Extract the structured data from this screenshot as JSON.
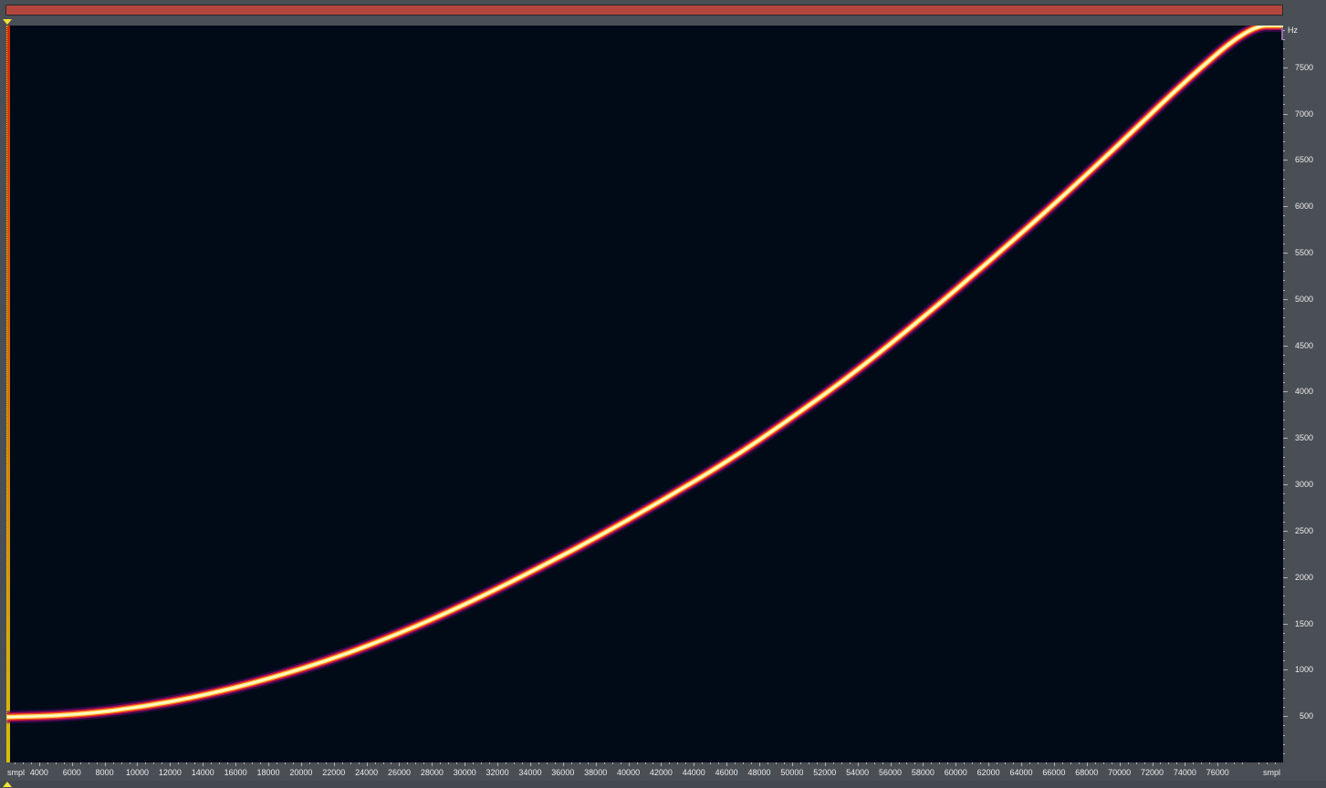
{
  "app": {
    "overview_color": "#b5463e",
    "background_color": "#010b18",
    "marker_color": "#f2e23a"
  },
  "y_axis": {
    "unit": "Hz",
    "labels": [
      "7500",
      "7000",
      "6500",
      "6000",
      "5500",
      "5000",
      "4500",
      "4000",
      "3500",
      "3000",
      "2500",
      "2000",
      "1500",
      "1000",
      "500"
    ]
  },
  "x_axis": {
    "unit_left": "smpl",
    "unit_right": "smpl",
    "labels": [
      "4000",
      "6000",
      "8000",
      "10000",
      "12000",
      "14000",
      "16000",
      "18000",
      "20000",
      "22000",
      "24000",
      "26000",
      "28000",
      "30000",
      "32000",
      "34000",
      "36000",
      "38000",
      "40000",
      "42000",
      "44000",
      "46000",
      "48000",
      "50000",
      "52000",
      "54000",
      "56000",
      "58000",
      "60000",
      "62000",
      "64000",
      "66000",
      "68000",
      "70000",
      "72000",
      "74000",
      "76000"
    ]
  },
  "chart_data": {
    "type": "heatmap",
    "title": "",
    "xlabel": "smpl",
    "ylabel": "Hz",
    "xlim": [
      2000,
      80000
    ],
    "ylim": [
      0,
      7950
    ],
    "x_ticks": [
      4000,
      6000,
      8000,
      10000,
      12000,
      14000,
      16000,
      18000,
      20000,
      22000,
      24000,
      26000,
      28000,
      30000,
      32000,
      34000,
      36000,
      38000,
      40000,
      42000,
      44000,
      46000,
      48000,
      50000,
      52000,
      54000,
      56000,
      58000,
      60000,
      62000,
      64000,
      66000,
      68000,
      70000,
      72000,
      74000,
      76000
    ],
    "y_ticks": [
      500,
      1000,
      1500,
      2000,
      2500,
      3000,
      3500,
      4000,
      4500,
      5000,
      5500,
      6000,
      6500,
      7000,
      7500
    ],
    "series": [
      {
        "x": [
          2000,
          6000,
          10000,
          14000,
          18000,
          22000,
          26000,
          30000,
          34000,
          38000,
          42000,
          46000,
          50000,
          54000,
          58000,
          62000,
          66000,
          70000,
          74000,
          78000,
          80000
        ],
        "values": [
          490,
          510,
          590,
          720,
          900,
          1120,
          1390,
          1700,
          2050,
          2420,
          2820,
          3240,
          3720,
          4230,
          4800,
          5400,
          6020,
          6670,
          7350,
          7950,
          7950
        ]
      }
    ]
  }
}
